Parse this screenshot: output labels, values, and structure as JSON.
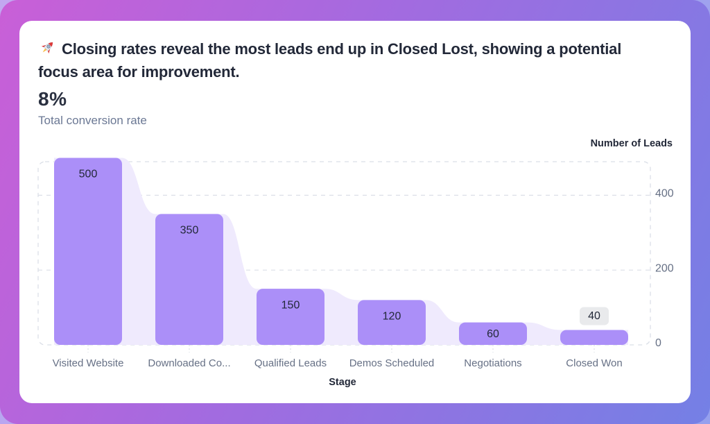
{
  "header": {
    "icon": "rocket-icon",
    "title": "Closing rates reveal the most leads end up in Closed Lost, showing a potential focus area for improvement.",
    "metric_value": "8%",
    "metric_caption": "Total conversion rate"
  },
  "colors": {
    "frame_gradient_start": "#c95fd7",
    "frame_gradient_mid": "#a26be0",
    "frame_gradient_end": "#7480e5",
    "bar": "#ab8ff8",
    "funnel_area": "#efeafd",
    "grid": "#dbdfe7",
    "label_chip": "#e9eaec",
    "text_dark": "#222838",
    "text_muted": "#667085"
  },
  "chart_data": {
    "type": "bar",
    "variant": "funnel",
    "categories": [
      "Visited Website",
      "Downloaded Co...",
      "Qualified Leads",
      "Demos Scheduled",
      "Negotiations",
      "Closed Won"
    ],
    "values": [
      500,
      350,
      150,
      120,
      60,
      40
    ],
    "xlabel": "Stage",
    "ylabel": "Number of Leads",
    "yticks": [
      0,
      200,
      400
    ],
    "ylim": [
      0,
      500
    ],
    "grid": true,
    "legend": false
  }
}
